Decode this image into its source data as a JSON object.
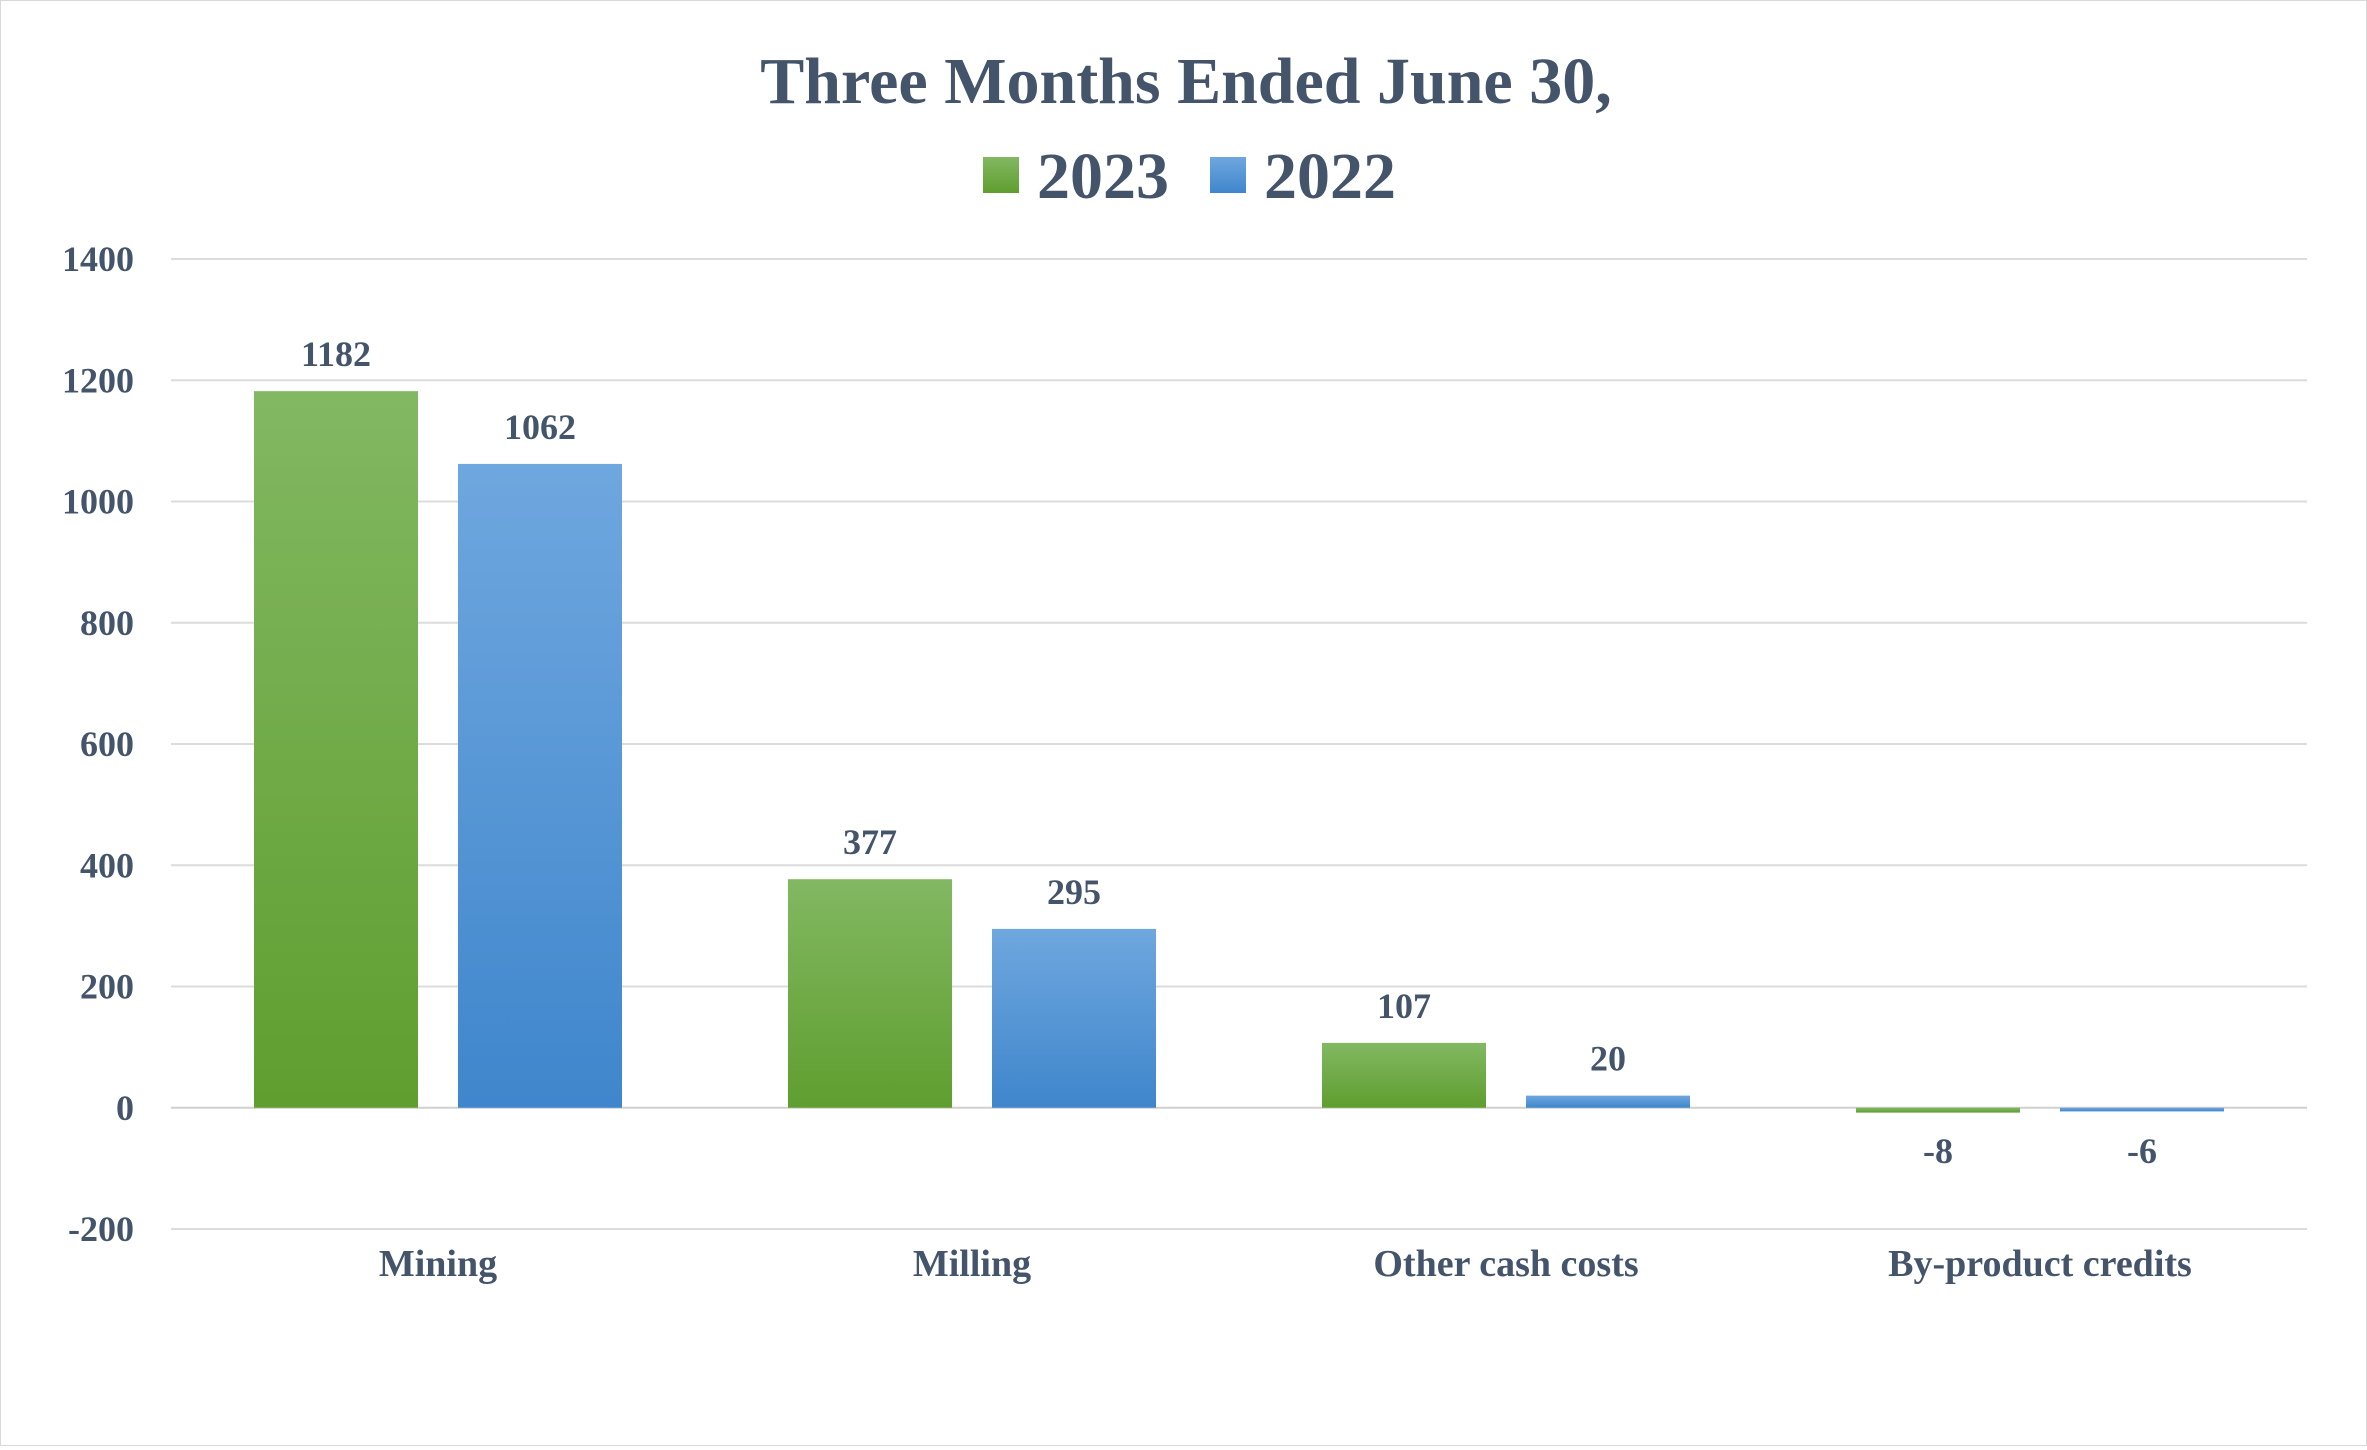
{
  "chart_data": {
    "type": "bar",
    "title": "Three Months Ended June 30,",
    "categories": [
      "Mining",
      "Milling",
      "Other cash costs",
      "By-product credits"
    ],
    "series": [
      {
        "name": "2023",
        "values": [
          1182,
          377,
          107,
          -8
        ],
        "color": "#6aaa3a"
      },
      {
        "name": "2022",
        "values": [
          1062,
          295,
          20,
          -6
        ],
        "color": "#4f92d6"
      }
    ],
    "ylim": [
      -200,
      1400
    ],
    "yticks": [
      -200,
      0,
      200,
      400,
      600,
      800,
      1000,
      1200,
      1400
    ],
    "grid": true,
    "legend_position": "top",
    "data_labels": true,
    "xlabel": "",
    "ylabel": ""
  }
}
